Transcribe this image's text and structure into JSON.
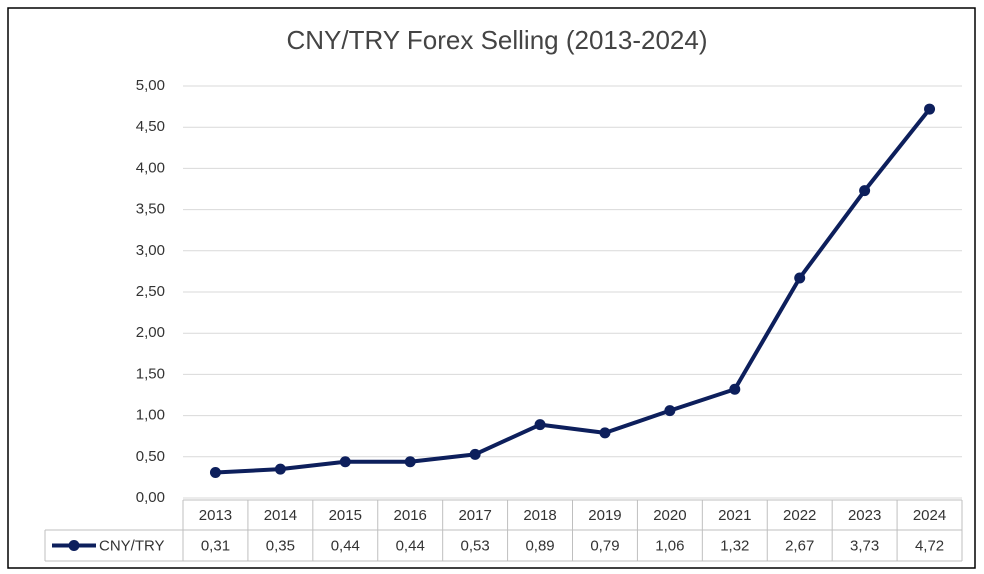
{
  "chart_data": {
    "type": "line",
    "title": "CNY/TRY Forex Selling (2013-2024)",
    "categories": [
      "2013",
      "2014",
      "2015",
      "2016",
      "2017",
      "2018",
      "2019",
      "2020",
      "2021",
      "2022",
      "2023",
      "2024"
    ],
    "series": [
      {
        "name": "CNY/TRY",
        "color": "#0d1f5c",
        "values": [
          0.31,
          0.35,
          0.44,
          0.44,
          0.53,
          0.89,
          0.79,
          1.06,
          1.32,
          2.67,
          3.73,
          4.72
        ],
        "value_labels": [
          "0,31",
          "0,35",
          "0,44",
          "0,44",
          "0,53",
          "0,89",
          "0,79",
          "1,06",
          "1,32",
          "2,67",
          "3,73",
          "4,72"
        ]
      }
    ],
    "ylim": [
      0,
      5
    ],
    "yticks": [
      {
        "value": 0,
        "label": "0,00"
      },
      {
        "value": 0.5,
        "label": "0,50"
      },
      {
        "value": 1,
        "label": "1,00"
      },
      {
        "value": 1.5,
        "label": "1,50"
      },
      {
        "value": 2,
        "label": "2,00"
      },
      {
        "value": 2.5,
        "label": "2,50"
      },
      {
        "value": 3,
        "label": "3,00"
      },
      {
        "value": 3.5,
        "label": "3,50"
      },
      {
        "value": 4,
        "label": "4,00"
      },
      {
        "value": 4.5,
        "label": "4,50"
      },
      {
        "value": 5,
        "label": "5,00"
      }
    ],
    "grid": true
  }
}
